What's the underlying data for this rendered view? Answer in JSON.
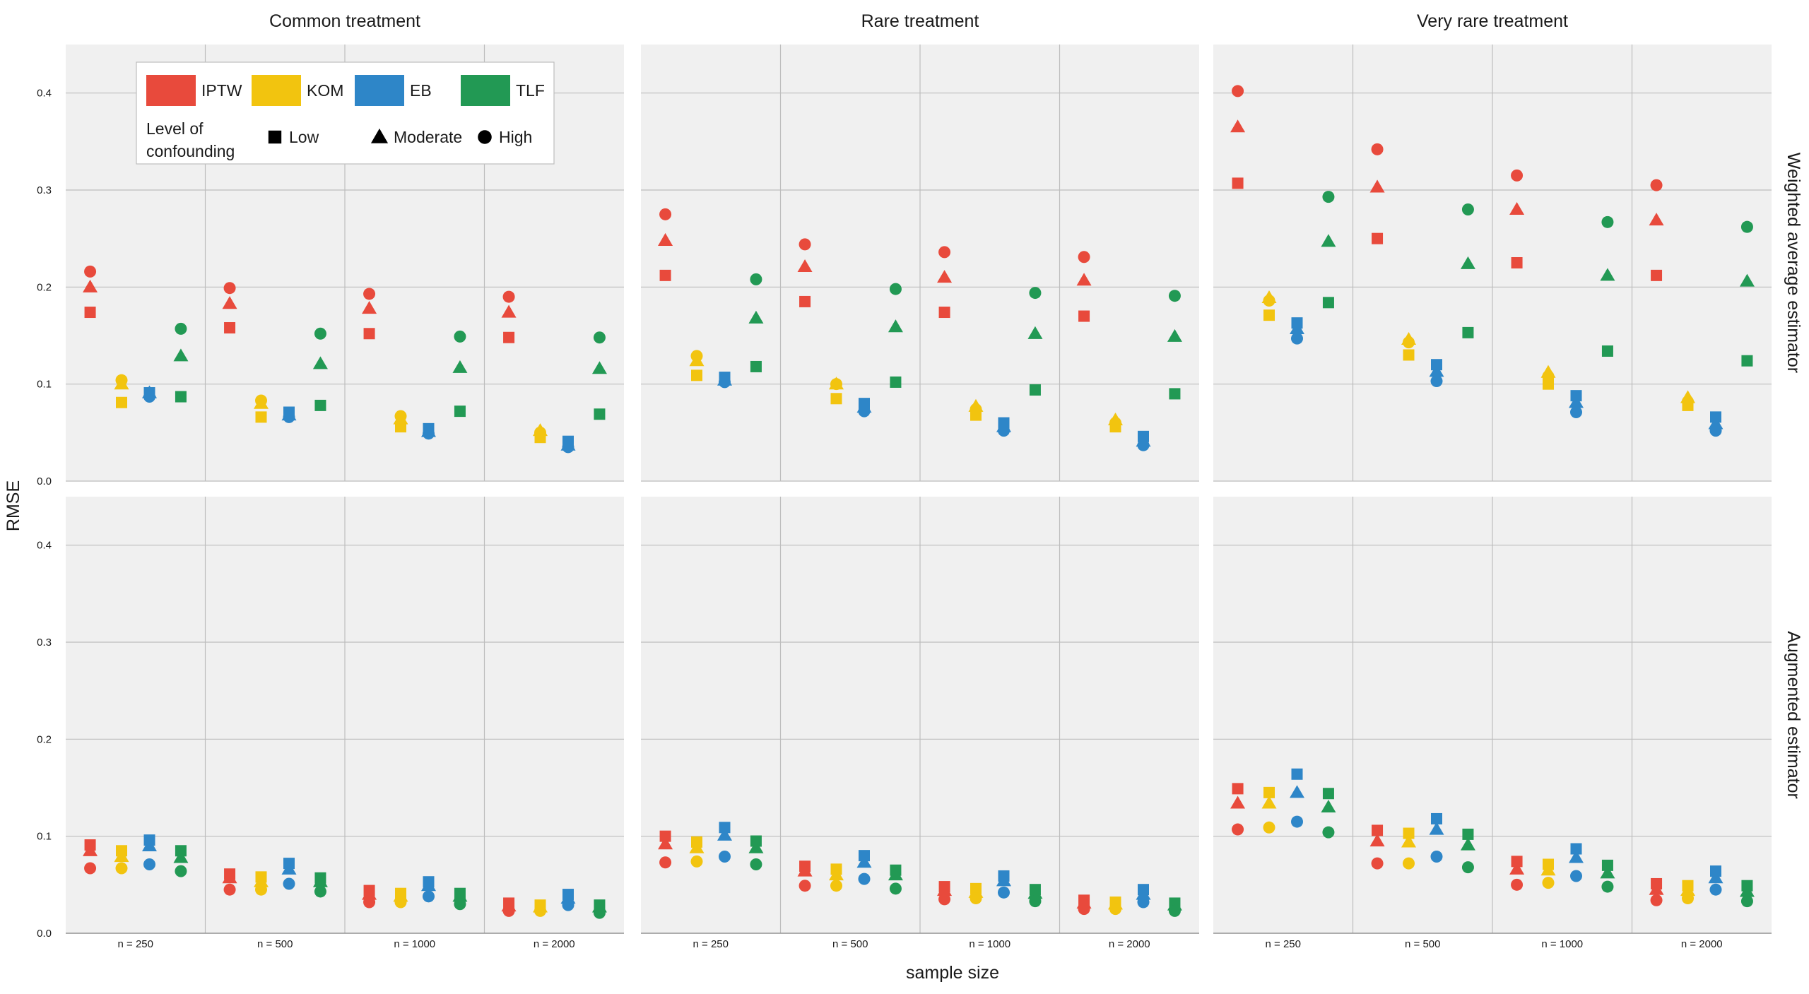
{
  "chart_data": {
    "type": "scatter",
    "ylabel": "RMSE",
    "xlabel": "sample size",
    "ylim": [
      0,
      0.45
    ],
    "y_ticks": [
      "0.0",
      "0.1",
      "0.2",
      "0.3",
      "0.4"
    ],
    "y_tick_values": [
      0,
      0.1,
      0.2,
      0.3,
      0.4
    ],
    "sample_sizes": [
      "n = 250",
      "n = 500",
      "n = 1000",
      "n = 2000"
    ],
    "panel_columns": [
      "Common treatment",
      "Rare treatment",
      "Very rare treatment"
    ],
    "panel_rows": [
      "Weighted average estimator",
      "Augmented estimator"
    ],
    "methods": [
      {
        "key": "IPTW",
        "label": "IPTW",
        "color": "#e84a3c"
      },
      {
        "key": "KOM",
        "label": "KOM",
        "color": "#f2c40f"
      },
      {
        "key": "EB",
        "label": "EB",
        "color": "#2e86c8"
      },
      {
        "key": "TLF",
        "label": "TLF",
        "color": "#229954"
      }
    ],
    "confounding": [
      {
        "key": "low",
        "label": "Low",
        "shape": "square"
      },
      {
        "key": "moderate",
        "label": "Moderate",
        "shape": "triangle"
      },
      {
        "key": "high",
        "label": "High",
        "shape": "circle"
      }
    ],
    "legend": {
      "position": "top-left",
      "confounding_title_line1": "Level of",
      "confounding_title_line2": "confounding"
    },
    "panels": [
      {
        "row": 0,
        "col": 0,
        "values": {
          "IPTW": [
            [
              0.174,
              0.2,
              0.216
            ],
            [
              0.158,
              0.183,
              0.199
            ],
            [
              0.152,
              0.178,
              0.193
            ],
            [
              0.148,
              0.174,
              0.19
            ]
          ],
          "KOM": [
            [
              0.081,
              0.1,
              0.104
            ],
            [
              0.066,
              0.08,
              0.083
            ],
            [
              0.056,
              0.064,
              0.067
            ],
            [
              0.045,
              0.052,
              0.05
            ]
          ],
          "EB": [
            [
              0.091,
              0.091,
              0.087
            ],
            [
              0.071,
              0.068,
              0.066
            ],
            [
              0.054,
              0.051,
              0.049
            ],
            [
              0.041,
              0.037,
              0.035
            ]
          ],
          "TLF": [
            [
              0.087,
              0.129,
              0.157
            ],
            [
              0.078,
              0.121,
              0.152
            ],
            [
              0.072,
              0.117,
              0.149
            ],
            [
              0.069,
              0.116,
              0.148
            ]
          ]
        }
      },
      {
        "row": 0,
        "col": 1,
        "values": {
          "IPTW": [
            [
              0.212,
              0.248,
              0.275
            ],
            [
              0.185,
              0.221,
              0.244
            ],
            [
              0.174,
              0.21,
              0.236
            ],
            [
              0.17,
              0.207,
              0.231
            ]
          ],
          "KOM": [
            [
              0.109,
              0.124,
              0.129
            ],
            [
              0.085,
              0.1,
              0.1
            ],
            [
              0.068,
              0.077,
              0.074
            ],
            [
              0.056,
              0.063,
              0.06
            ]
          ],
          "EB": [
            [
              0.107,
              0.104,
              0.102
            ],
            [
              0.08,
              0.076,
              0.072
            ],
            [
              0.06,
              0.056,
              0.052
            ],
            [
              0.046,
              0.041,
              0.037
            ]
          ],
          "TLF": [
            [
              0.118,
              0.168,
              0.208
            ],
            [
              0.102,
              0.159,
              0.198
            ],
            [
              0.094,
              0.152,
              0.194
            ],
            [
              0.09,
              0.149,
              0.191
            ]
          ]
        }
      },
      {
        "row": 0,
        "col": 2,
        "values": {
          "IPTW": [
            [
              0.307,
              0.365,
              0.402
            ],
            [
              0.25,
              0.303,
              0.342
            ],
            [
              0.225,
              0.28,
              0.315
            ],
            [
              0.212,
              0.269,
              0.305
            ]
          ],
          "KOM": [
            [
              0.171,
              0.189,
              0.186
            ],
            [
              0.13,
              0.146,
              0.143
            ],
            [
              0.1,
              0.112,
              0.108
            ],
            [
              0.078,
              0.086,
              0.082
            ]
          ],
          "EB": [
            [
              0.163,
              0.157,
              0.147
            ],
            [
              0.12,
              0.113,
              0.103
            ],
            [
              0.088,
              0.081,
              0.071
            ],
            [
              0.066,
              0.059,
              0.052
            ]
          ],
          "TLF": [
            [
              0.184,
              0.247,
              0.293
            ],
            [
              0.153,
              0.224,
              0.28
            ],
            [
              0.134,
              0.212,
              0.267
            ],
            [
              0.124,
              0.206,
              0.262
            ]
          ]
        }
      },
      {
        "row": 1,
        "col": 0,
        "values": {
          "IPTW": [
            [
              0.091,
              0.085,
              0.067
            ],
            [
              0.061,
              0.057,
              0.045
            ],
            [
              0.044,
              0.04,
              0.032
            ],
            [
              0.031,
              0.028,
              0.023
            ]
          ],
          "KOM": [
            [
              0.085,
              0.079,
              0.067
            ],
            [
              0.058,
              0.053,
              0.045
            ],
            [
              0.041,
              0.038,
              0.032
            ],
            [
              0.029,
              0.027,
              0.023
            ]
          ],
          "EB": [
            [
              0.096,
              0.09,
              0.071
            ],
            [
              0.072,
              0.066,
              0.051
            ],
            [
              0.053,
              0.049,
              0.038
            ],
            [
              0.04,
              0.036,
              0.029
            ]
          ],
          "TLF": [
            [
              0.085,
              0.078,
              0.064
            ],
            [
              0.057,
              0.053,
              0.043
            ],
            [
              0.041,
              0.038,
              0.03
            ],
            [
              0.029,
              0.027,
              0.021
            ]
          ]
        }
      },
      {
        "row": 1,
        "col": 1,
        "values": {
          "IPTW": [
            [
              0.1,
              0.092,
              0.073
            ],
            [
              0.069,
              0.064,
              0.049
            ],
            [
              0.048,
              0.044,
              0.035
            ],
            [
              0.034,
              0.031,
              0.025
            ]
          ],
          "KOM": [
            [
              0.094,
              0.088,
              0.074
            ],
            [
              0.066,
              0.06,
              0.049
            ],
            [
              0.046,
              0.042,
              0.036
            ],
            [
              0.032,
              0.03,
              0.025
            ]
          ],
          "EB": [
            [
              0.109,
              0.101,
              0.079
            ],
            [
              0.08,
              0.073,
              0.056
            ],
            [
              0.059,
              0.054,
              0.042
            ],
            [
              0.045,
              0.04,
              0.032
            ]
          ],
          "TLF": [
            [
              0.095,
              0.088,
              0.071
            ],
            [
              0.065,
              0.06,
              0.046
            ],
            [
              0.045,
              0.041,
              0.033
            ],
            [
              0.031,
              0.029,
              0.023
            ]
          ]
        }
      },
      {
        "row": 1,
        "col": 2,
        "values": {
          "IPTW": [
            [
              0.149,
              0.134,
              0.107
            ],
            [
              0.106,
              0.095,
              0.072
            ],
            [
              0.074,
              0.066,
              0.05
            ],
            [
              0.051,
              0.045,
              0.034
            ]
          ],
          "KOM": [
            [
              0.145,
              0.134,
              0.109
            ],
            [
              0.103,
              0.094,
              0.072
            ],
            [
              0.071,
              0.065,
              0.052
            ],
            [
              0.049,
              0.044,
              0.036
            ]
          ],
          "EB": [
            [
              0.164,
              0.145,
              0.115
            ],
            [
              0.118,
              0.107,
              0.079
            ],
            [
              0.087,
              0.078,
              0.059
            ],
            [
              0.064,
              0.057,
              0.045
            ]
          ],
          "TLF": [
            [
              0.144,
              0.13,
              0.104
            ],
            [
              0.102,
              0.091,
              0.068
            ],
            [
              0.07,
              0.062,
              0.048
            ],
            [
              0.049,
              0.043,
              0.033
            ]
          ]
        }
      }
    ]
  }
}
